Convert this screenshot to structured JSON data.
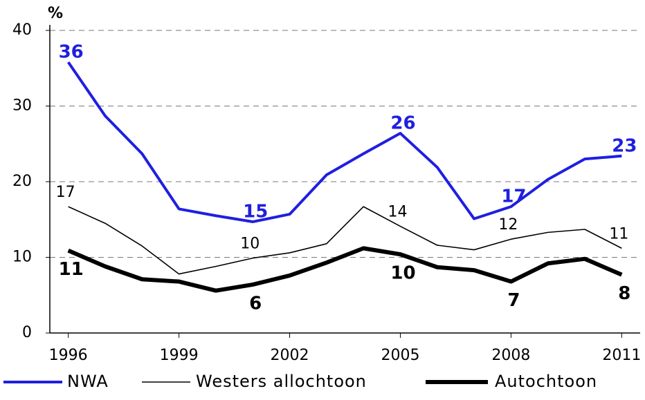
{
  "chart_data": {
    "type": "line",
    "y_label": "%",
    "x": [
      1996,
      1997,
      1998,
      1999,
      2000,
      2001,
      2002,
      2003,
      2004,
      2005,
      2006,
      2007,
      2008,
      2009,
      2010,
      2011
    ],
    "xlim": [
      1995.5,
      2011.5
    ],
    "xticks": [
      1996,
      1999,
      2002,
      2005,
      2008,
      2011
    ],
    "ylim": [
      0,
      40
    ],
    "yticks": [
      0,
      10,
      20,
      30,
      40
    ],
    "grid": true,
    "series": [
      {
        "name": "NWA",
        "color": "#1f1fe0",
        "values": [
          35.8,
          28.7,
          23.7,
          16.4,
          15.5,
          14.7,
          15.7,
          20.9,
          23.7,
          26.4,
          21.9,
          15.1,
          16.7,
          20.3,
          23.0,
          23.4
        ],
        "value_labels": [
          "36",
          null,
          null,
          null,
          null,
          "15",
          null,
          null,
          null,
          "26",
          null,
          null,
          "17",
          null,
          null,
          "23"
        ]
      },
      {
        "name": "Westers allochtoon",
        "color": "#000000",
        "values": [
          16.7,
          14.5,
          11.5,
          7.8,
          8.8,
          9.9,
          10.6,
          11.8,
          16.7,
          14.1,
          11.6,
          11.0,
          12.4,
          13.3,
          13.7,
          11.2
        ],
        "value_labels": [
          "17",
          null,
          null,
          null,
          null,
          "10",
          null,
          null,
          null,
          "14",
          null,
          null,
          "12",
          null,
          null,
          "11"
        ]
      },
      {
        "name": "Autochtoon",
        "color": "#000000",
        "values": [
          10.9,
          8.8,
          7.1,
          6.8,
          5.6,
          6.4,
          7.6,
          9.3,
          11.2,
          10.4,
          8.7,
          8.3,
          6.8,
          9.2,
          9.8,
          7.7
        ],
        "value_labels": [
          "11",
          null,
          null,
          null,
          null,
          "6",
          null,
          null,
          null,
          "10",
          null,
          null,
          "7",
          null,
          null,
          "8"
        ]
      }
    ]
  }
}
